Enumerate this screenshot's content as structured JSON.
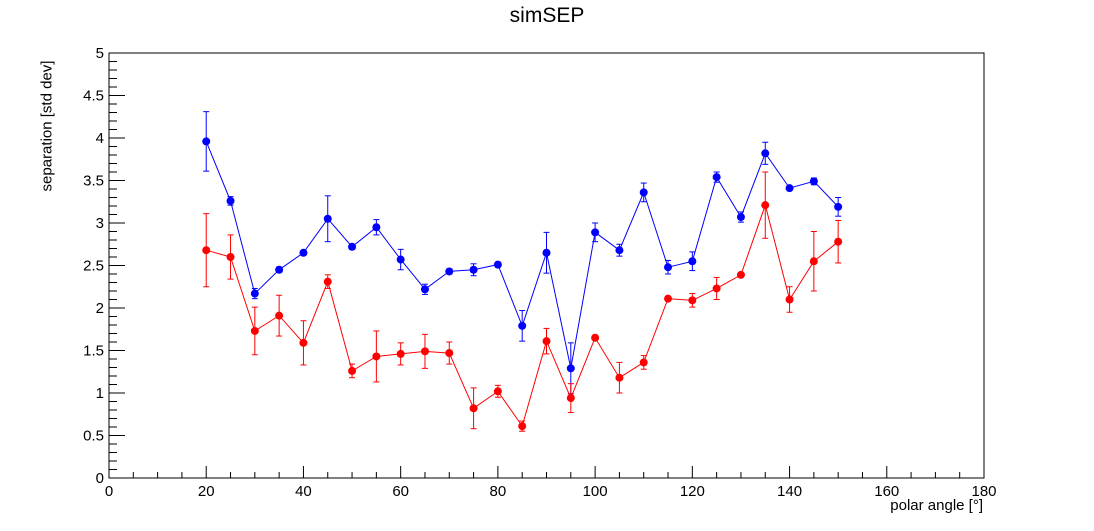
{
  "chart_data": {
    "type": "scatter",
    "title": "simSEP",
    "xlabel": "polar angle [°]",
    "ylabel": "separation [std dev]",
    "xlim": [
      0,
      180
    ],
    "ylim": [
      0,
      5
    ],
    "x_ticks": [
      0,
      20,
      40,
      60,
      80,
      100,
      120,
      140,
      160,
      180
    ],
    "y_ticks": [
      0,
      0.5,
      1,
      1.5,
      2,
      2.5,
      3,
      3.5,
      4,
      4.5,
      5
    ],
    "grid": false,
    "legend": "none",
    "x": [
      20,
      25,
      30,
      35,
      40,
      45,
      50,
      55,
      60,
      65,
      70,
      75,
      80,
      85,
      90,
      95,
      100,
      105,
      110,
      115,
      120,
      125,
      130,
      135,
      140,
      145,
      150
    ],
    "series": [
      {
        "color": "#0000ff",
        "values": [
          3.96,
          3.26,
          2.17,
          2.45,
          2.65,
          3.05,
          2.72,
          2.95,
          2.57,
          2.22,
          2.43,
          2.45,
          2.51,
          1.79,
          2.65,
          1.29,
          2.89,
          2.68,
          3.36,
          2.48,
          2.55,
          3.54,
          3.07,
          3.82,
          3.41,
          3.49,
          3.19
        ],
        "errors": [
          0.35,
          0.05,
          0.06,
          0.03,
          0.02,
          0.27,
          0.03,
          0.09,
          0.12,
          0.06,
          0.03,
          0.07,
          0.03,
          0.18,
          0.24,
          0.3,
          0.11,
          0.07,
          0.11,
          0.08,
          0.11,
          0.06,
          0.06,
          0.13,
          0.02,
          0.04,
          0.11
        ]
      },
      {
        "color": "#ff0000",
        "values": [
          2.68,
          2.6,
          1.73,
          1.91,
          1.59,
          2.31,
          1.26,
          1.43,
          1.46,
          1.49,
          1.47,
          0.82,
          1.02,
          0.61,
          1.61,
          0.94,
          1.65,
          1.18,
          1.36,
          2.11,
          2.09,
          2.23,
          2.39,
          3.21,
          2.1,
          2.55,
          2.78
        ]
      }
    ],
    "series_errors_red": [
      0.43,
      0.26,
      0.28,
      0.24,
      0.26,
      0.08,
      0.08,
      0.3,
      0.13,
      0.2,
      0.13,
      0.24,
      0.07,
      0.06,
      0.15,
      0.17,
      0.02,
      0.18,
      0.08,
      0.02,
      0.08,
      0.13,
      0.02,
      0.39,
      0.15,
      0.35,
      0.25
    ]
  }
}
